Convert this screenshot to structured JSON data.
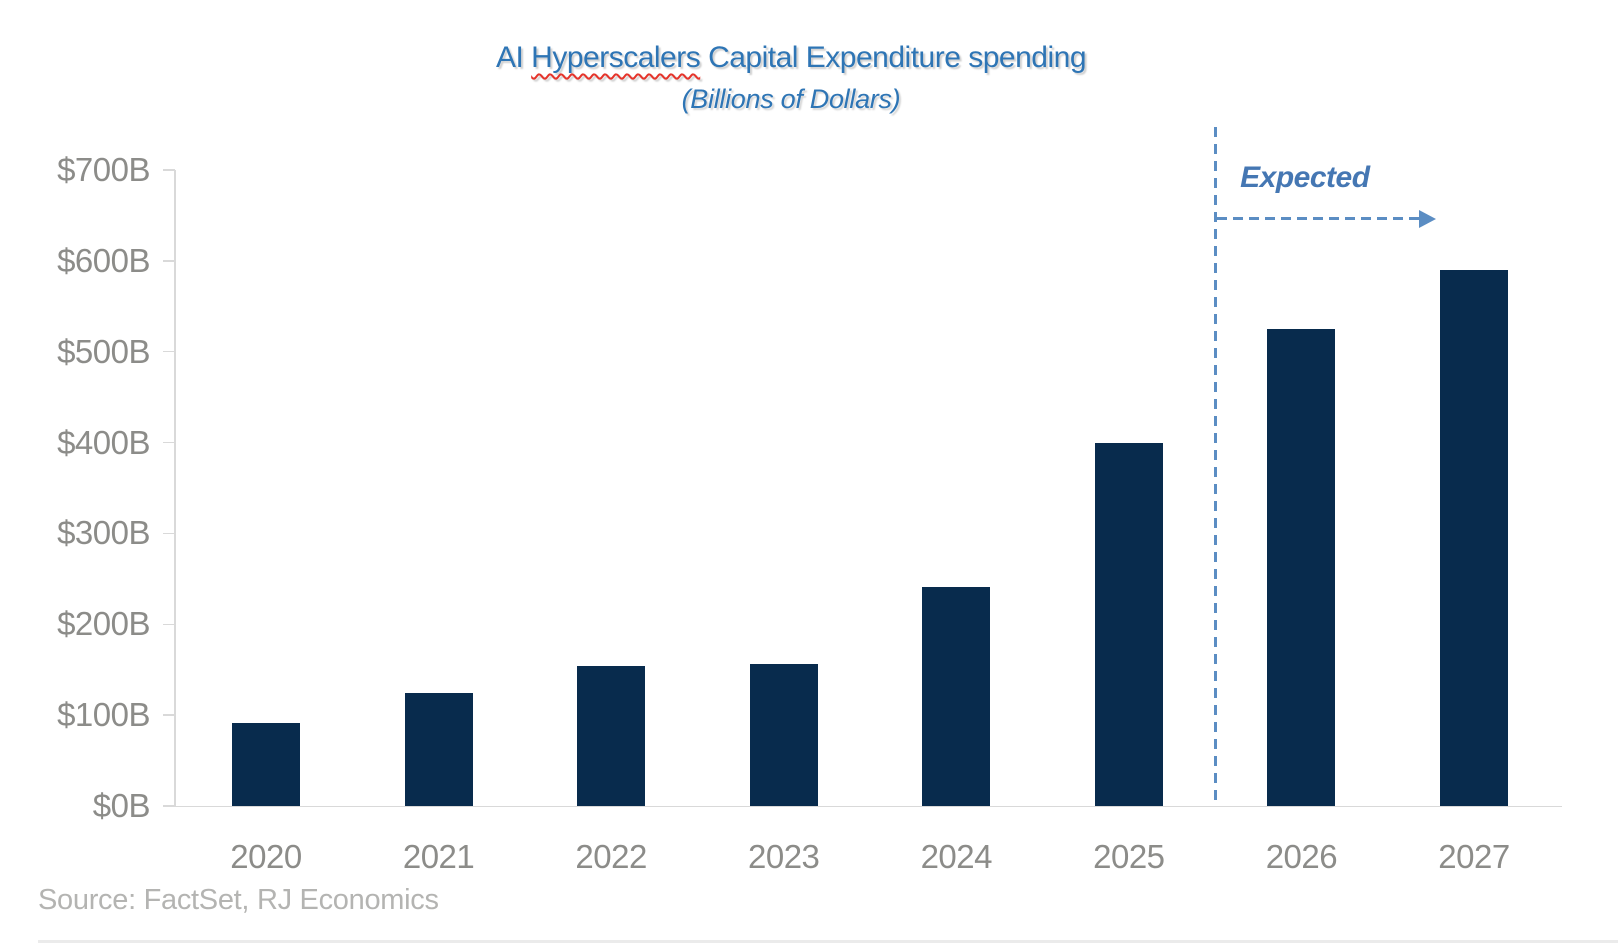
{
  "title": {
    "prefix": "AI ",
    "misspelled_word": "Hyperscalers",
    "suffix": " Capital Expenditure spending",
    "subtitle": "(Billions of Dollars)"
  },
  "annotation": {
    "expected_label": "Expected"
  },
  "source_note": "Source: FactSet, RJ Economics",
  "colors": {
    "title_blue": "#2E75B5",
    "bar_navy": "#082B4D",
    "expected_blue": "#4577B3",
    "dash_blue": "#5B8DC3",
    "axis_label_gray": "#8C8C89",
    "source_gray": "#B4B4B2",
    "axis_line_gray": "#D9D9D9",
    "squiggle_red": "#E5342B"
  },
  "chart_data": {
    "type": "bar",
    "title": "AI Hyperscalers Capital Expenditure spending",
    "subtitle": "(Billions of Dollars)",
    "categories": [
      "2020",
      "2021",
      "2022",
      "2023",
      "2024",
      "2025",
      "2026",
      "2027"
    ],
    "values": [
      91,
      124,
      154,
      156,
      241,
      400,
      525,
      590
    ],
    "unit": "billions of US dollars",
    "y_tick_labels": [
      "$0B",
      "$100B",
      "$200B",
      "$300B",
      "$400B",
      "$500B",
      "$600B",
      "$700B"
    ],
    "ylim": [
      0,
      700
    ],
    "grid": false,
    "legend": "none",
    "expected_start_category": "2026",
    "expected_annotation": "Expected",
    "source": "Source: FactSet, RJ Economics"
  }
}
